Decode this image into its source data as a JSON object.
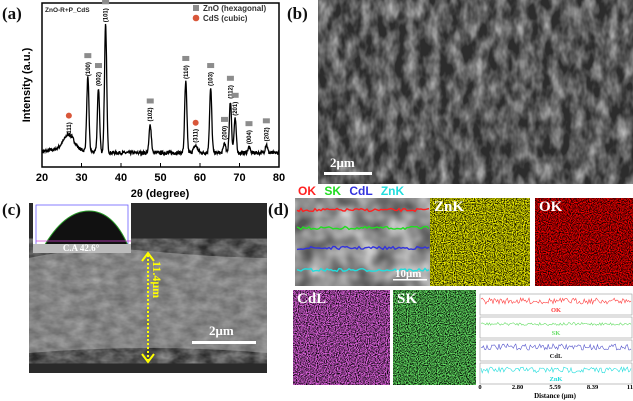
{
  "panels": {
    "a": "(a)",
    "b": "(b)",
    "c": "(c)",
    "d": "(d)"
  },
  "chart_data": {
    "type": "line",
    "sample_label": "ZnO-R+P_CdS",
    "xlabel": "2θ (degree)",
    "ylabel": "Intensity (a.u.)",
    "xlim": [
      20,
      80
    ],
    "ylim": [
      0,
      1.15
    ],
    "xticks": [
      "20",
      "30",
      "40",
      "50",
      "60",
      "70",
      "80"
    ],
    "grid": false,
    "legend_position": "top-right",
    "legend": [
      {
        "label": "ZnO (hexagonal)",
        "marker": "square",
        "color": "#8c8c8c"
      },
      {
        "label": "CdS (cubic)",
        "marker": "circle",
        "color": "#d9573a"
      }
    ],
    "baseline": 0.1,
    "peaks": [
      {
        "x": 26.8,
        "y": 0.2,
        "hkl": "(111)",
        "phase": "CdS"
      },
      {
        "x": 31.6,
        "y": 0.62,
        "hkl": "(100)",
        "phase": "ZnO"
      },
      {
        "x": 34.3,
        "y": 0.55,
        "hkl": "(002)",
        "phase": "ZnO"
      },
      {
        "x": 36.1,
        "y": 1.0,
        "hkl": "(101)",
        "phase": "ZnO"
      },
      {
        "x": 47.4,
        "y": 0.3,
        "hkl": "(102)",
        "phase": "ZnO"
      },
      {
        "x": 56.4,
        "y": 0.6,
        "hkl": "(110)",
        "phase": "ZnO"
      },
      {
        "x": 58.9,
        "y": 0.15,
        "hkl": "(311)",
        "phase": "CdS"
      },
      {
        "x": 62.7,
        "y": 0.55,
        "hkl": "(103)",
        "phase": "ZnO"
      },
      {
        "x": 66.2,
        "y": 0.17,
        "hkl": "(200)",
        "phase": "ZnO"
      },
      {
        "x": 67.7,
        "y": 0.46,
        "hkl": "(112)",
        "phase": "ZnO"
      },
      {
        "x": 68.9,
        "y": 0.34,
        "hkl": "(201)",
        "phase": "ZnO"
      },
      {
        "x": 72.4,
        "y": 0.14,
        "hkl": "(004)",
        "phase": "ZnO"
      },
      {
        "x": 76.8,
        "y": 0.16,
        "hkl": "(202)",
        "phase": "ZnO"
      }
    ]
  },
  "b": {
    "scale_bar": "2μm"
  },
  "c": {
    "contact_angle": "C.A 42.6°",
    "thickness": "11.4μm",
    "scale_bar": "2μm"
  },
  "d": {
    "legend": [
      {
        "label": "OK",
        "color": "#ff2020"
      },
      {
        "label": "SK",
        "color": "#22dd22"
      },
      {
        "label": "CdL",
        "color": "#3333dd"
      },
      {
        "label": "ZnK",
        "color": "#22dddd"
      }
    ],
    "scale_bar": "10μm",
    "maps": [
      {
        "label": "ZnK",
        "color": "#e6e600"
      },
      {
        "label": "OK",
        "color": "#e00000"
      },
      {
        "label": "CdL",
        "color": "#c020c0"
      },
      {
        "label": "SK",
        "color": "#20c020"
      }
    ],
    "profile": {
      "traces": [
        {
          "label": "OK",
          "color": "#ff4040"
        },
        {
          "label": "SK",
          "color": "#66dd66"
        },
        {
          "label": "CdL",
          "color": "#5555cc"
        },
        {
          "label": "ZnK",
          "color": "#22dddd"
        }
      ],
      "xticks": [
        "0",
        "2.80",
        "5.59",
        "8.39",
        "11"
      ],
      "xlabel": "Distance (μm)"
    }
  }
}
